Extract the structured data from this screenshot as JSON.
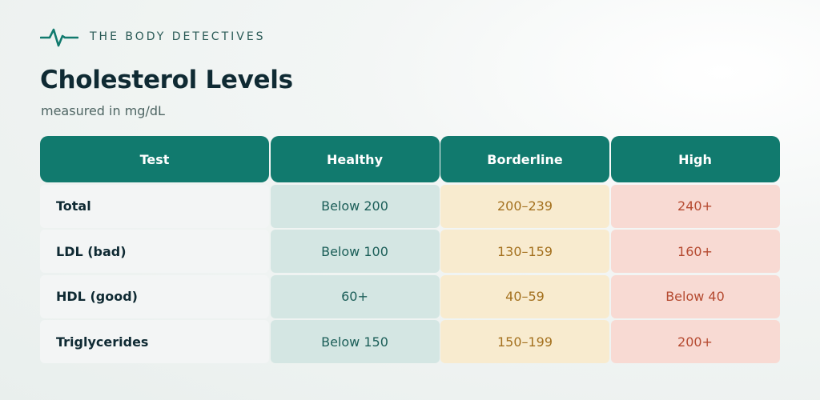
{
  "brand": {
    "name": "THE BODY DETECTIVES",
    "logo_icon": "heartbeat-line-icon",
    "accent_color": "#117a6e"
  },
  "title": "Cholesterol Levels",
  "subtitle": "measured in mg/dL",
  "table": {
    "headers": [
      "Test",
      "Healthy",
      "Borderline",
      "High"
    ],
    "rows": [
      {
        "test": "Total",
        "healthy": "Below 200",
        "borderline": "200–239",
        "high": "240+"
      },
      {
        "test": "LDL (bad)",
        "healthy": "Below 100",
        "borderline": "130–159",
        "high": "160+"
      },
      {
        "test": "HDL (good)",
        "healthy": "60+",
        "borderline": "40–59",
        "high": "Below 40"
      },
      {
        "test": "Triglycerides",
        "healthy": "Below 150",
        "borderline": "150–199",
        "high": "200+"
      }
    ],
    "colors": {
      "header_bg": "#117a6e",
      "healthy_bg": "#d4e6e3",
      "borderline_bg": "#f8ebcf",
      "high_bg": "#f8dad3"
    }
  }
}
